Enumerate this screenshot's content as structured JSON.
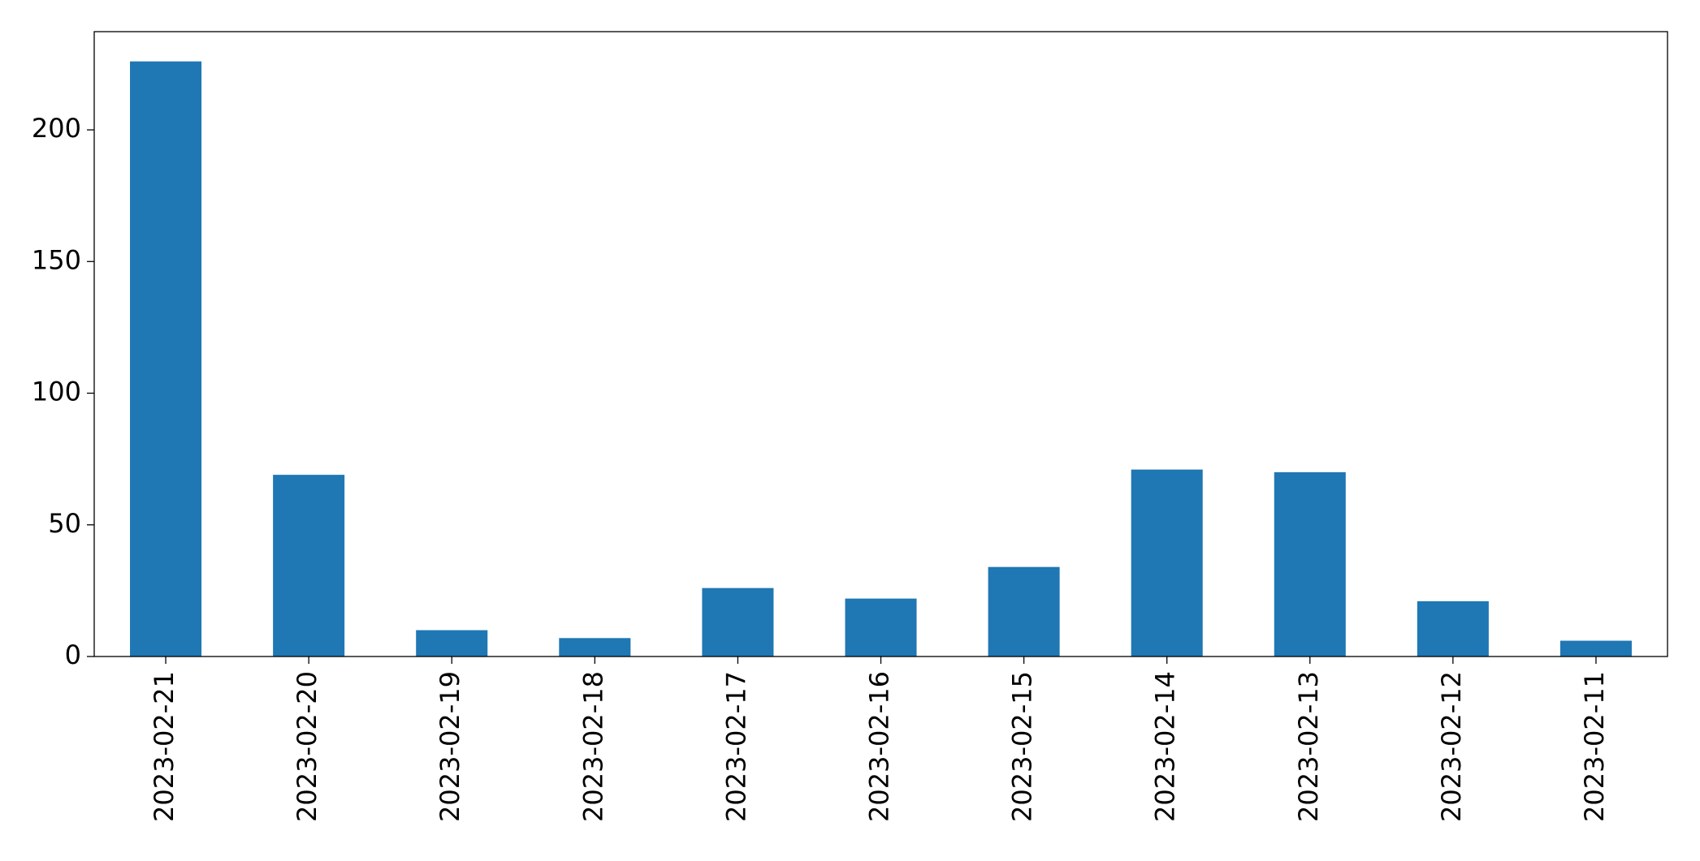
{
  "chart_data": {
    "type": "bar",
    "categories": [
      "2023-02-21",
      "2023-02-20",
      "2023-02-19",
      "2023-02-18",
      "2023-02-17",
      "2023-02-16",
      "2023-02-15",
      "2023-02-14",
      "2023-02-13",
      "2023-02-12",
      "2023-02-11"
    ],
    "values": [
      226,
      69,
      10,
      7,
      26,
      22,
      34,
      71,
      70,
      21,
      6
    ],
    "color": "#1f77b4",
    "ylim": [
      0,
      237.3
    ],
    "yticks": [
      0,
      50,
      100,
      150,
      200
    ],
    "grid": false
  }
}
